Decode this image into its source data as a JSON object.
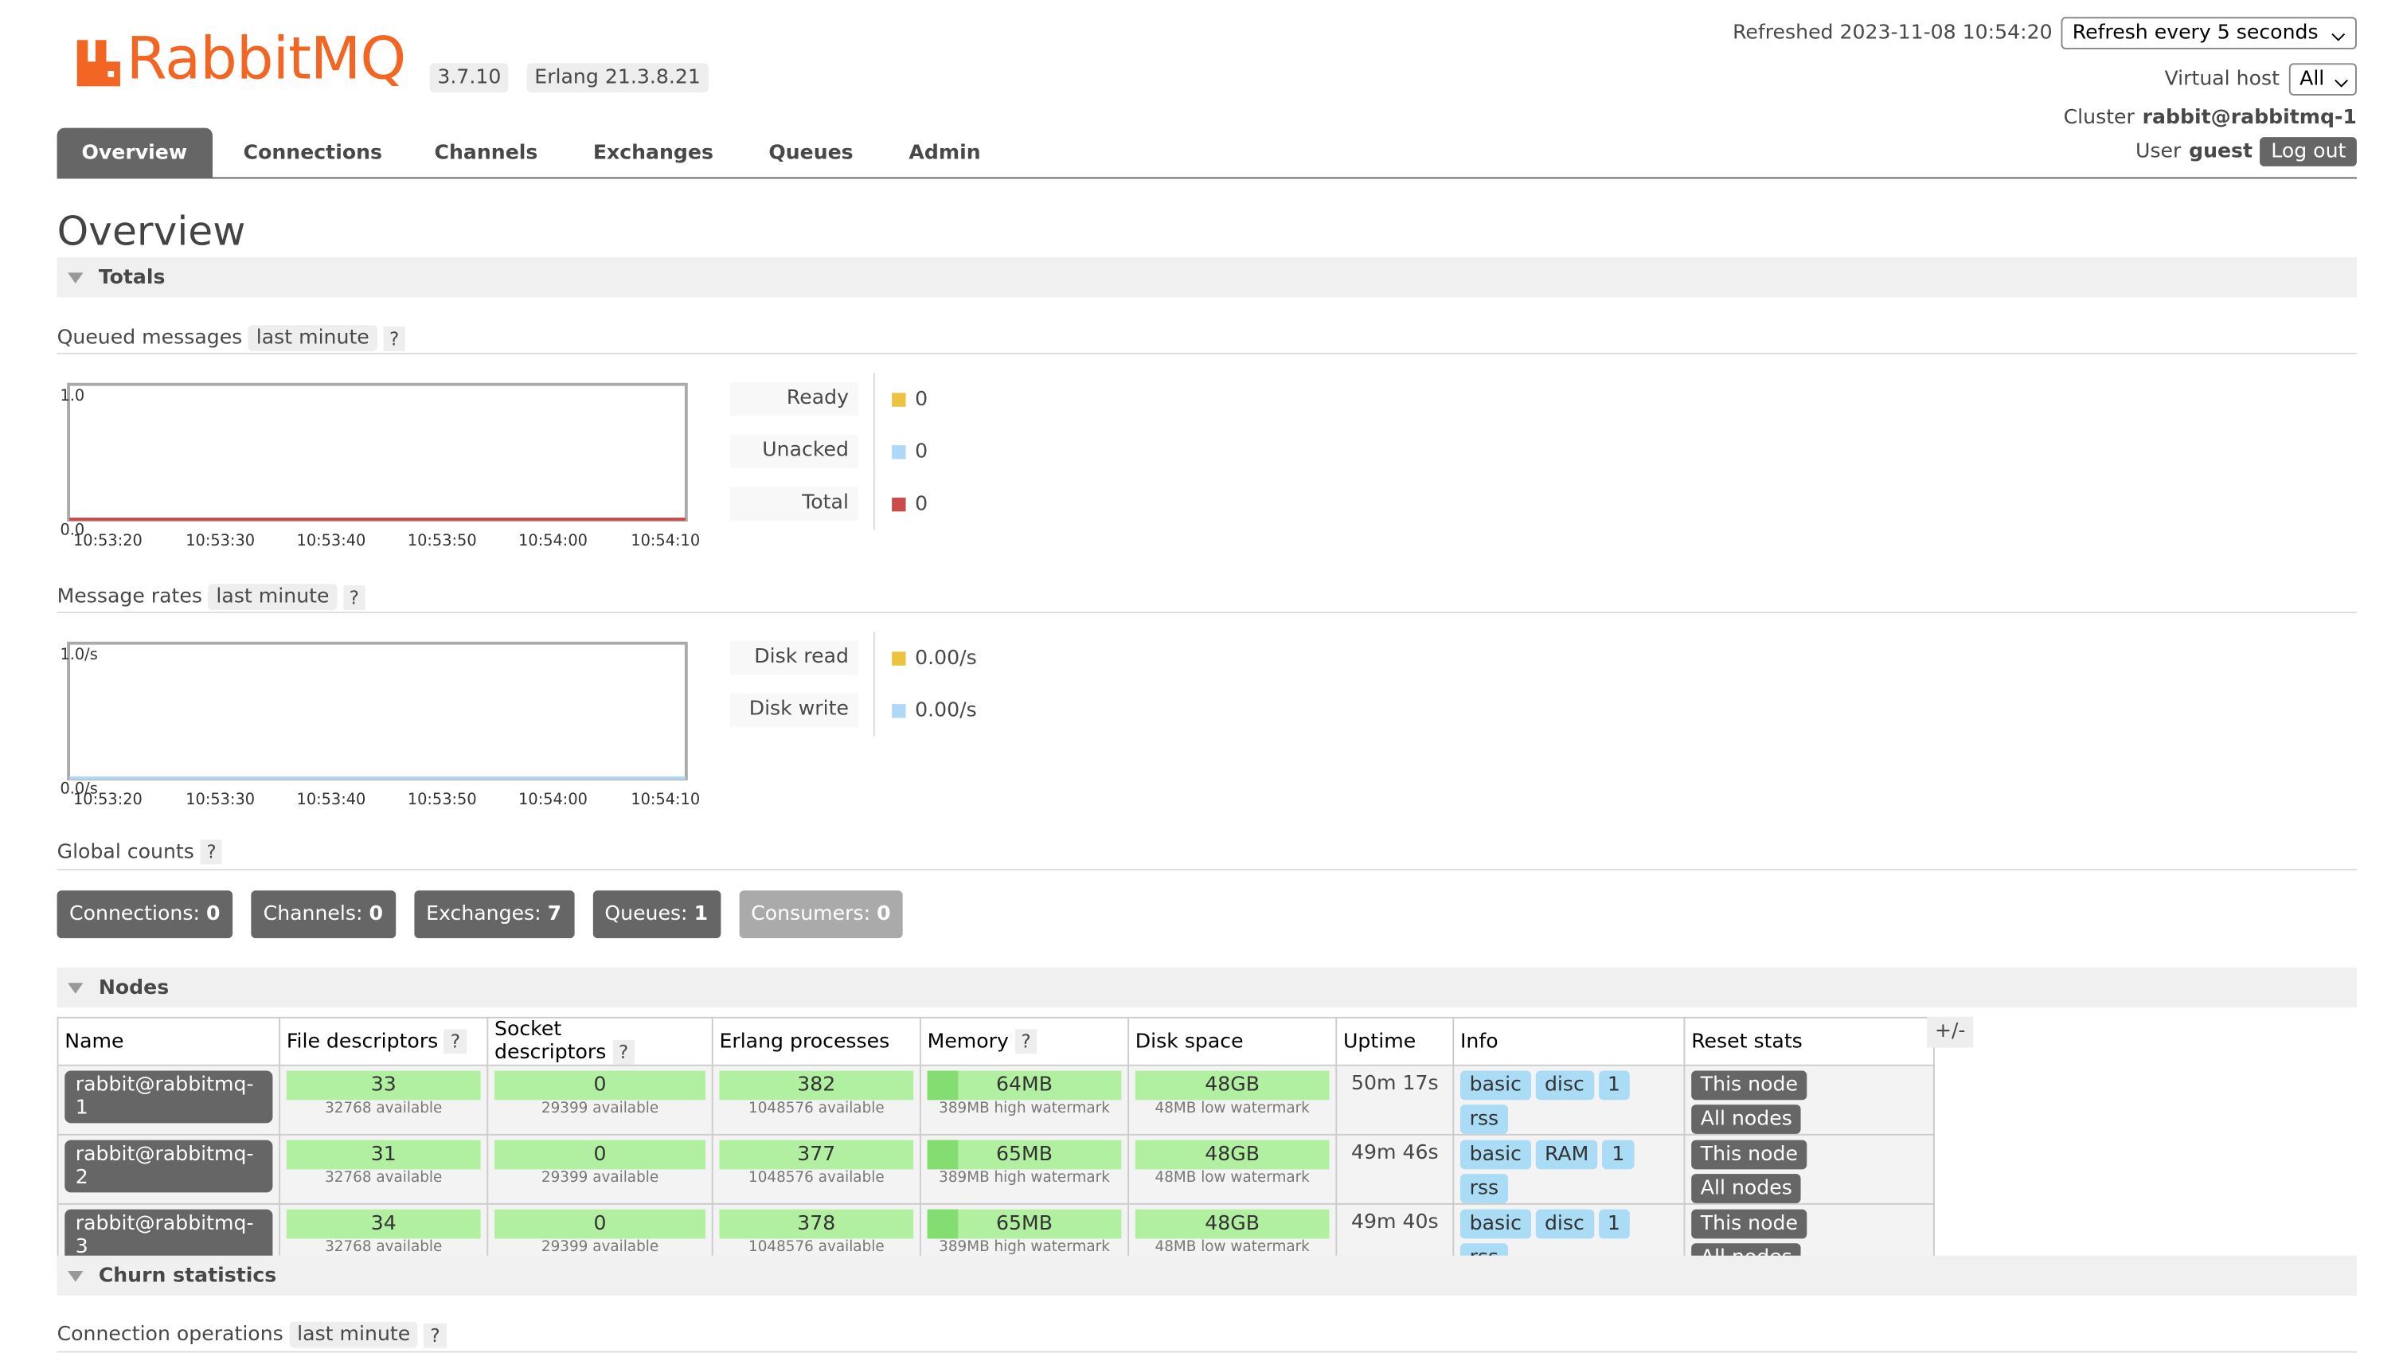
{
  "header": {
    "logo": "RabbitMQ",
    "version": "3.7.10",
    "erlang": "Erlang 21.3.8.21",
    "refreshed": "Refreshed 2023-11-08 10:54:20",
    "refresh_select": "Refresh every 5 seconds",
    "vhost_label": "Virtual host",
    "vhost_select": "All",
    "cluster_label": "Cluster",
    "cluster": "rabbit@rabbitmq-1",
    "user_label": "User",
    "user": "guest",
    "logout": "Log out"
  },
  "tabs": [
    "Overview",
    "Connections",
    "Channels",
    "Exchanges",
    "Queues",
    "Admin"
  ],
  "page_title": "Overview",
  "totals": {
    "heading": "Totals",
    "charts": [
      {
        "label": "Queued messages",
        "range": "last minute",
        "help": "?",
        "y_top": "1.0",
        "y_bottom": "0.0",
        "times": [
          "10:53:20",
          "10:53:30",
          "10:53:40",
          "10:53:50",
          "10:54:00",
          "10:54:10"
        ],
        "legend": [
          {
            "name": "Ready",
            "value": 0,
            "color": "#edc240"
          },
          {
            "name": "Unacked",
            "value": 0,
            "color": "#afd8f8"
          },
          {
            "name": "Total",
            "value": 0,
            "color": "#cb4b4b"
          }
        ]
      },
      {
        "label": "Message rates",
        "range": "last minute",
        "help": "?",
        "y_top": "1.0/s",
        "y_bottom": "0.0/s",
        "times": [
          "10:53:20",
          "10:53:30",
          "10:53:40",
          "10:53:50",
          "10:54:00",
          "10:54:10"
        ],
        "legend": [
          {
            "name": "Disk read",
            "value": "0.00/s",
            "color": "#edc240"
          },
          {
            "name": "Disk write",
            "value": "0.00/s",
            "color": "#afd8f8"
          }
        ]
      }
    ],
    "global": {
      "label": "Global counts",
      "help": "?",
      "counts": [
        {
          "name": "Connections:",
          "value": 0,
          "color": "#666666"
        },
        {
          "name": "Channels:",
          "value": 0,
          "color": "#666666"
        },
        {
          "name": "Exchanges:",
          "value": 7,
          "color": "#666666"
        },
        {
          "name": "Queues:",
          "value": 1,
          "color": "#666666"
        },
        {
          "name": "Consumers:",
          "value": 0,
          "color": "#aaaaaa"
        }
      ]
    }
  },
  "nodes": {
    "heading": "Nodes",
    "toggle": "+/-",
    "columns": [
      {
        "name": "Name"
      },
      {
        "name": "File descriptors",
        "help": "?"
      },
      {
        "name": "Socket descriptors",
        "help": "?"
      },
      {
        "name": "Erlang processes"
      },
      {
        "name": "Memory",
        "help": "?"
      },
      {
        "name": "Disk space"
      },
      {
        "name": "Uptime"
      },
      {
        "name": "Info"
      },
      {
        "name": "Reset stats"
      }
    ],
    "rows": [
      {
        "name": "rabbit@rabbitmq-1",
        "fd": {
          "value": 33,
          "sub": "32768 available"
        },
        "sd": {
          "value": 0,
          "sub": "29399 available"
        },
        "erl": {
          "value": 382,
          "sub": "1048576 available"
        },
        "mem": {
          "value": "64MB",
          "sub": "389MB high watermark"
        },
        "disk": {
          "value": "48GB",
          "sub": "48MB low watermark"
        },
        "uptime": "50m 17s",
        "info": [
          "basic",
          "disc",
          "1",
          "rss"
        ],
        "reset": [
          "This node",
          "All nodes"
        ]
      },
      {
        "name": "rabbit@rabbitmq-2",
        "fd": {
          "value": 31,
          "sub": "32768 available"
        },
        "sd": {
          "value": 0,
          "sub": "29399 available"
        },
        "erl": {
          "value": 377,
          "sub": "1048576 available"
        },
        "mem": {
          "value": "65MB",
          "sub": "389MB high watermark"
        },
        "disk": {
          "value": "48GB",
          "sub": "48MB low watermark"
        },
        "uptime": "49m 46s",
        "info": [
          "basic",
          "RAM",
          "1",
          "rss"
        ],
        "reset": [
          "This node",
          "All nodes"
        ]
      },
      {
        "name": "rabbit@rabbitmq-3",
        "fd": {
          "value": 34,
          "sub": "32768 available"
        },
        "sd": {
          "value": 0,
          "sub": "29399 available"
        },
        "erl": {
          "value": 378,
          "sub": "1048576 available"
        },
        "mem": {
          "value": "65MB",
          "sub": "389MB high watermark"
        },
        "disk": {
          "value": "48GB",
          "sub": "48MB low watermark"
        },
        "uptime": "49m 40s",
        "info": [
          "basic",
          "disc",
          "1",
          "rss"
        ],
        "reset": [
          "This node",
          "All nodes"
        ]
      }
    ]
  },
  "churn": {
    "heading": "Churn statistics",
    "label": "Connection operations",
    "range": "last minute",
    "help": "?"
  }
}
